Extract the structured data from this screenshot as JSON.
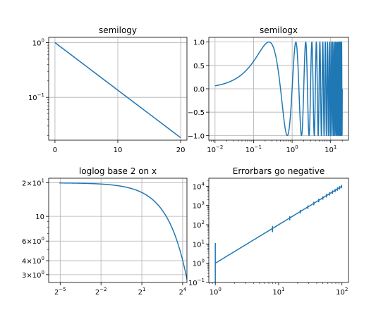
{
  "chart_data": [
    {
      "type": "line",
      "title": "semilogy",
      "xscale": "linear",
      "yscale": "log",
      "xlim": [
        -1,
        21
      ],
      "ylim": [
        0.0165,
        1.25
      ],
      "grid": true,
      "xticks": [
        {
          "value": 0,
          "label": "0"
        },
        {
          "value": 10,
          "label": "10"
        },
        {
          "value": 20,
          "label": "20"
        }
      ],
      "yticks": [
        {
          "value": 1,
          "base": "10",
          "exp": "0"
        },
        {
          "value": 0.1,
          "base": "10",
          "exp": "−1"
        }
      ],
      "series": [
        {
          "x": [
            0,
            2,
            4,
            6,
            8,
            10,
            12,
            14,
            16,
            18,
            20
          ],
          "y": [
            1.0,
            0.6703,
            0.4493,
            0.3012,
            0.2019,
            0.1353,
            0.0907,
            0.0608,
            0.0408,
            0.0273,
            0.0183
          ]
        }
      ]
    },
    {
      "type": "line",
      "title": "semilogx",
      "xscale": "log",
      "yscale": "linear",
      "xlim": [
        0.0069,
        29
      ],
      "ylim": [
        -1.1,
        1.1
      ],
      "grid": true,
      "xticks": [
        {
          "value": 0.01,
          "base": "10",
          "exp": "−2"
        },
        {
          "value": 0.1,
          "base": "10",
          "exp": "−1"
        },
        {
          "value": 1,
          "base": "10",
          "exp": "0"
        },
        {
          "value": 10,
          "base": "10",
          "exp": "1"
        }
      ],
      "yticks": [
        {
          "value": 1.0,
          "label": "1.0"
        },
        {
          "value": 0.5,
          "label": "0.5"
        },
        {
          "value": 0.0,
          "label": "0.0"
        },
        {
          "value": -0.5,
          "label": "−0.5"
        },
        {
          "value": -1.0,
          "label": "−1.0"
        }
      ],
      "series": [
        {
          "function": "sin(2*pi*x)",
          "x_range": [
            0.01,
            20.0
          ]
        }
      ]
    },
    {
      "type": "line",
      "title": "loglog base 2 on x",
      "xscale": "log2",
      "yscale": "log",
      "xlim": [
        0.0174,
        19.9
      ],
      "ylim": [
        2.55,
        22.0
      ],
      "grid": true,
      "xticks": [
        {
          "value": 0.03125,
          "base": "2",
          "exp": "−5"
        },
        {
          "value": 0.25,
          "base": "2",
          "exp": "−2"
        },
        {
          "value": 2,
          "base": "2",
          "exp": "1"
        },
        {
          "value": 16,
          "base": "2",
          "exp": "4"
        }
      ],
      "yticks": [
        {
          "value": 20,
          "mant": "2",
          "base": "10",
          "exp": "1"
        },
        {
          "value": 10,
          "label": "10"
        },
        {
          "value": 6,
          "mant": "6",
          "base": "10",
          "exp": "0"
        },
        {
          "value": 4,
          "mant": "4",
          "base": "10",
          "exp": "0"
        },
        {
          "value": 3,
          "mant": "3",
          "base": "10",
          "exp": "0"
        }
      ],
      "series": [
        {
          "function": "20*exp(-x/10)",
          "x_range": [
            0.03,
            20.0
          ]
        }
      ]
    },
    {
      "type": "line",
      "title": "Errorbars go negative",
      "xscale": "log",
      "yscale": "log",
      "xlim": [
        0.79,
        127
      ],
      "ylim": [
        0.1,
        26000
      ],
      "grid": false,
      "xticks": [
        {
          "value": 1,
          "base": "10",
          "exp": "0"
        },
        {
          "value": 10,
          "base": "10",
          "exp": "1"
        },
        {
          "value": 100,
          "base": "10",
          "exp": "2"
        }
      ],
      "yticks": [
        {
          "value": 0.1,
          "base": "10",
          "exp": "−1"
        },
        {
          "value": 1,
          "base": "10",
          "exp": "0"
        },
        {
          "value": 10,
          "base": "10",
          "exp": "1"
        },
        {
          "value": 100,
          "base": "10",
          "exp": "2"
        },
        {
          "value": 1000,
          "base": "10",
          "exp": "3"
        },
        {
          "value": 10000,
          "base": "10",
          "exp": "4"
        }
      ],
      "series": [
        {
          "x_range": [
            1,
            101
          ],
          "x_step": 7,
          "y": "x^2",
          "yerr": "10 + 0.2*y",
          "errorbars": true,
          "x": [
            1,
            8,
            15,
            22,
            29,
            36,
            43,
            50,
            57,
            64,
            71,
            78,
            85,
            92,
            99
          ],
          "values": [
            1,
            64,
            225,
            484,
            841,
            1296,
            1849,
            2500,
            3249,
            4096,
            5041,
            6084,
            7225,
            8464,
            9801
          ]
        }
      ]
    }
  ]
}
